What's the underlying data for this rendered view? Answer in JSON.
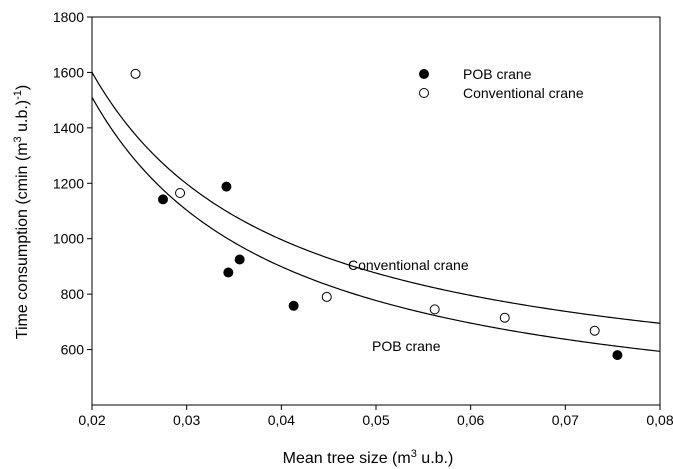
{
  "chart_data": {
    "type": "scatter",
    "title": "",
    "xlabel": {
      "prefix": "Mean tree size (m",
      "sup": "3",
      "suffix": " u.b.)"
    },
    "ylabel": {
      "prefix": "Time consumption (cmin (m",
      "sup1": "3",
      "mid": " u.b.)",
      "sup2": "-1",
      "suffix": ")"
    },
    "xlim": [
      0.02,
      0.08
    ],
    "ylim": [
      400,
      1800
    ],
    "x_ticks": [
      0.02,
      0.03,
      0.04,
      0.05,
      0.06,
      0.07,
      0.08
    ],
    "x_tick_labels": [
      "0,02",
      "0,03",
      "0,04",
      "0,05",
      "0,06",
      "0,07",
      "0,08"
    ],
    "y_ticks": [
      600,
      800,
      1000,
      1200,
      1400,
      1600,
      1800
    ],
    "y_tick_labels": [
      "600",
      "800",
      "1000",
      "1200",
      "1400",
      "1600",
      "1800"
    ],
    "grid": false,
    "legend_position": "top-right",
    "series": [
      {
        "name": "POB crane",
        "marker": "filled-circle",
        "color": "#000000",
        "points": [
          {
            "x": 0.0275,
            "y": 1142
          },
          {
            "x": 0.0342,
            "y": 1188
          },
          {
            "x": 0.0344,
            "y": 878
          },
          {
            "x": 0.0356,
            "y": 925
          },
          {
            "x": 0.0413,
            "y": 758
          },
          {
            "x": 0.0755,
            "y": 580
          }
        ]
      },
      {
        "name": "Conventional crane",
        "marker": "open-circle",
        "color": "#000000",
        "points": [
          {
            "x": 0.0246,
            "y": 1595
          },
          {
            "x": 0.0293,
            "y": 1165
          },
          {
            "x": 0.0448,
            "y": 790
          },
          {
            "x": 0.0562,
            "y": 745
          },
          {
            "x": 0.0636,
            "y": 715
          },
          {
            "x": 0.0731,
            "y": 668
          }
        ]
      }
    ],
    "fitted_curves": [
      {
        "label": "Conventional crane",
        "model": "a + b/x",
        "a": 393,
        "b": 24.15
      },
      {
        "label": "POB crane",
        "model": "a + b/x",
        "a": 288,
        "b": 24.45
      }
    ]
  }
}
